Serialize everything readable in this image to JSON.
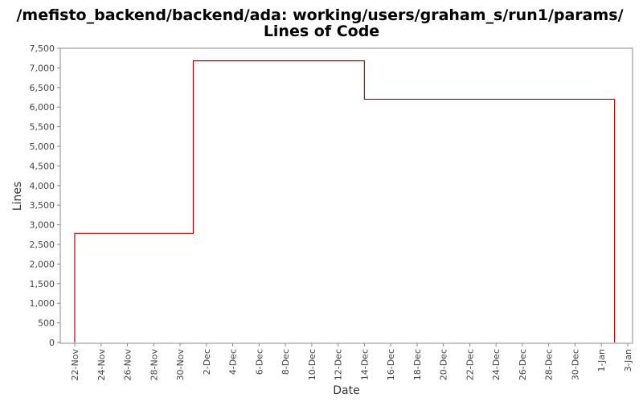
{
  "chart_data": {
    "type": "line",
    "title": "/mefisto_backend/backend/ada: working/users/graham_s/run1/params/",
    "subtitle": "Lines of Code",
    "xlabel": "Date",
    "ylabel": "Lines",
    "x_tick_labels": [
      "22-Nov",
      "24-Nov",
      "26-Nov",
      "28-Nov",
      "30-Nov",
      "2-Dec",
      "4-Dec",
      "6-Dec",
      "8-Dec",
      "10-Dec",
      "12-Dec",
      "14-Dec",
      "16-Dec",
      "18-Dec",
      "20-Dec",
      "22-Dec",
      "24-Dec",
      "26-Dec",
      "28-Dec",
      "30-Dec",
      "1-Jan",
      "3-Jan"
    ],
    "y_tick_labels": [
      "0",
      "500",
      "1,000",
      "1,500",
      "2,000",
      "2,500",
      "3,000",
      "3,500",
      "4,000",
      "4,500",
      "5,000",
      "5,500",
      "6,000",
      "6,500",
      "7,000",
      "7,500"
    ],
    "ylim": [
      0,
      7500
    ],
    "xlim": [
      "2010-11-21",
      "2011-01-03"
    ],
    "grid": false,
    "step": true,
    "series_color": "#cc0000",
    "series": [
      {
        "points": [
          [
            "2010-11-22",
            0
          ],
          [
            "2010-11-22",
            2780
          ],
          [
            "2010-12-01",
            7180
          ],
          [
            "2010-12-14",
            6200
          ],
          [
            "2011-01-02",
            0
          ],
          [
            "2011-01-02",
            3450
          ]
        ]
      }
    ]
  }
}
